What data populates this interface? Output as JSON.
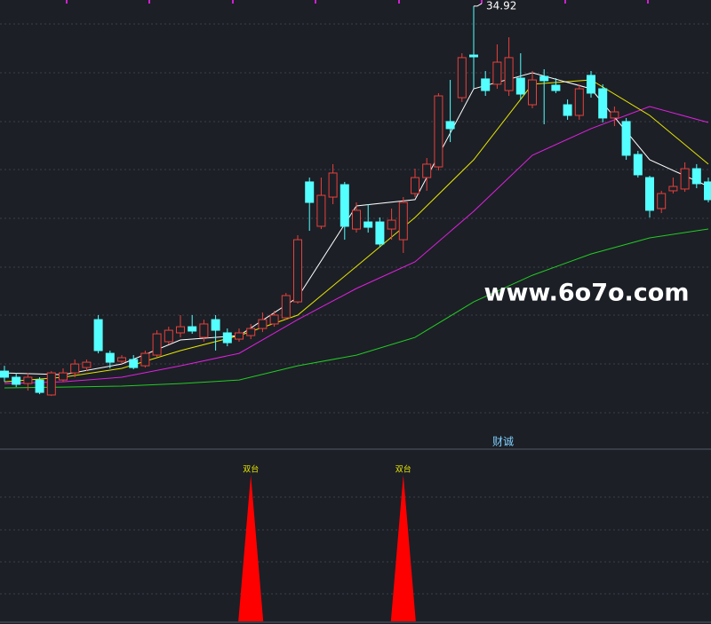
{
  "chart_data": [
    {
      "type": "candlestick",
      "ylim": [
        7.53,
        35.3
      ],
      "up_color": "#e8413c",
      "down_color": "#54ffff",
      "open": [
        12.31,
        11.93,
        11.54,
        11.76,
        10.83,
        11.76,
        12.2,
        12.53,
        15.5,
        13.41,
        12.92,
        13.03,
        12.64,
        13.3,
        14.13,
        14.68,
        15.06,
        14.4,
        15.5,
        14.68,
        14.29,
        14.51,
        14.95,
        15.23,
        15.61,
        16.6,
        24.03,
        21.28,
        23.09,
        23.86,
        21.11,
        21.55,
        21.55,
        21.11,
        20.45,
        23.31,
        24.3,
        24.96,
        27.77,
        29.25,
        31.89,
        30.41,
        30.08,
        29.69,
        30.46,
        28.81,
        30.57,
        30.02,
        28.81,
        28.15,
        30.63,
        29.8,
        27.99,
        27.77,
        25.73,
        24.3,
        22.38,
        23.48,
        23.59,
        24.85,
        24.03
      ],
      "high": [
        12.64,
        12.2,
        12.2,
        11.93,
        12.31,
        12.48,
        13.03,
        13.03,
        15.78,
        13.58,
        13.3,
        13.3,
        13.58,
        14.84,
        15.06,
        15.78,
        15.78,
        15.5,
        15.78,
        14.95,
        14.95,
        15.23,
        15.94,
        16.05,
        17.15,
        20.73,
        24.3,
        24.3,
        25.13,
        24.03,
        22.76,
        22.65,
        21.83,
        22.38,
        23.09,
        24.85,
        25.51,
        29.53,
        30.35,
        32,
        34.92,
        30.9,
        32.55,
        32.99,
        32,
        30.9,
        31.01,
        30.46,
        29.14,
        30.08,
        30.9,
        30.08,
        28.7,
        27.99,
        25.95,
        24.41,
        23.48,
        24.3,
        25.24,
        25.13,
        24.3
      ],
      "low": [
        11.65,
        11.32,
        11.1,
        10.88,
        10.77,
        11.65,
        11.93,
        12.31,
        13.41,
        12.48,
        12.75,
        12.42,
        12.53,
        13.19,
        13.96,
        14.4,
        14.62,
        14.13,
        13.58,
        13.85,
        14.13,
        14.29,
        14.73,
        15.06,
        15.5,
        16.49,
        21,
        21.11,
        22.65,
        20.45,
        20.89,
        20.89,
        20.01,
        20.45,
        19.63,
        23.09,
        23.48,
        24.74,
        26.5,
        28.98,
        29.8,
        29.36,
        29.8,
        29.36,
        29.14,
        28.59,
        27.6,
        29.53,
        27.88,
        27.88,
        29.25,
        27.71,
        27.49,
        25.4,
        24.3,
        21.83,
        22.1,
        23.31,
        23.42,
        23.64,
        22.76
      ],
      "close": [
        11.93,
        11.49,
        11.93,
        10.99,
        12.2,
        12.2,
        12.75,
        12.86,
        13.58,
        12.86,
        13.14,
        12.53,
        13.41,
        14.62,
        14.84,
        15.06,
        14.79,
        15.23,
        14.84,
        14.07,
        14.68,
        14.95,
        15.5,
        15.78,
        16.99,
        20.45,
        22.76,
        23.2,
        24.58,
        21.28,
        22.27,
        21.22,
        20.18,
        21.66,
        22.76,
        24.3,
        25.13,
        29.36,
        27.33,
        31.73,
        31.78,
        29.69,
        31.45,
        31.73,
        29.47,
        30.35,
        30.3,
        29.69,
        28.15,
        29.8,
        29.53,
        27.99,
        28.37,
        25.68,
        24.47,
        22.27,
        23.31,
        23.75,
        24.85,
        23.92,
        22.93
      ],
      "lines": [
        {
          "color": "#22cc22",
          "x": [
            0,
            5,
            10,
            15,
            20,
            25,
            30,
            35,
            40,
            45,
            50,
            55,
            60
          ],
          "values": [
            11.27,
            11.32,
            11.38,
            11.54,
            11.76,
            12.64,
            13.3,
            14.4,
            16.6,
            18.25,
            19.57,
            20.56,
            21.11
          ]
        },
        {
          "color": "#e020e0",
          "x": [
            0,
            5,
            10,
            15,
            20,
            25,
            30,
            35,
            40,
            45,
            50,
            55,
            60
          ],
          "values": [
            11.54,
            11.65,
            11.93,
            12.64,
            13.41,
            15.5,
            17.43,
            19.08,
            22.21,
            25.68,
            27.33,
            28.7,
            27.71
          ]
        },
        {
          "color": "#e6e600",
          "x": [
            0,
            5,
            10,
            15,
            20,
            25,
            30,
            35,
            40,
            45,
            50,
            55,
            60
          ],
          "values": [
            11.65,
            11.93,
            12.48,
            13.58,
            14.51,
            15.78,
            18.8,
            21.83,
            25.4,
            30.08,
            30.35,
            28.15,
            25.13
          ]
        },
        {
          "color": "#ffffff",
          "x": [
            0,
            5,
            10,
            15,
            20,
            25,
            30,
            35,
            40,
            45,
            50,
            55,
            60
          ],
          "values": [
            12.2,
            12.09,
            12.75,
            14.24,
            14.51,
            16.88,
            22.54,
            22.93,
            29.8,
            30.79,
            29.8,
            25.4,
            23.75
          ]
        }
      ],
      "brand": "财诚"
    },
    {
      "type": "signal",
      "ylim": [
        0,
        1.17
      ],
      "color": "#ff0000",
      "x": [
        21,
        34
      ],
      "values": [
        1,
        1
      ],
      "labels": [
        "双台",
        "双台"
      ]
    }
  ],
  "watermark": "www.6o7o.com"
}
